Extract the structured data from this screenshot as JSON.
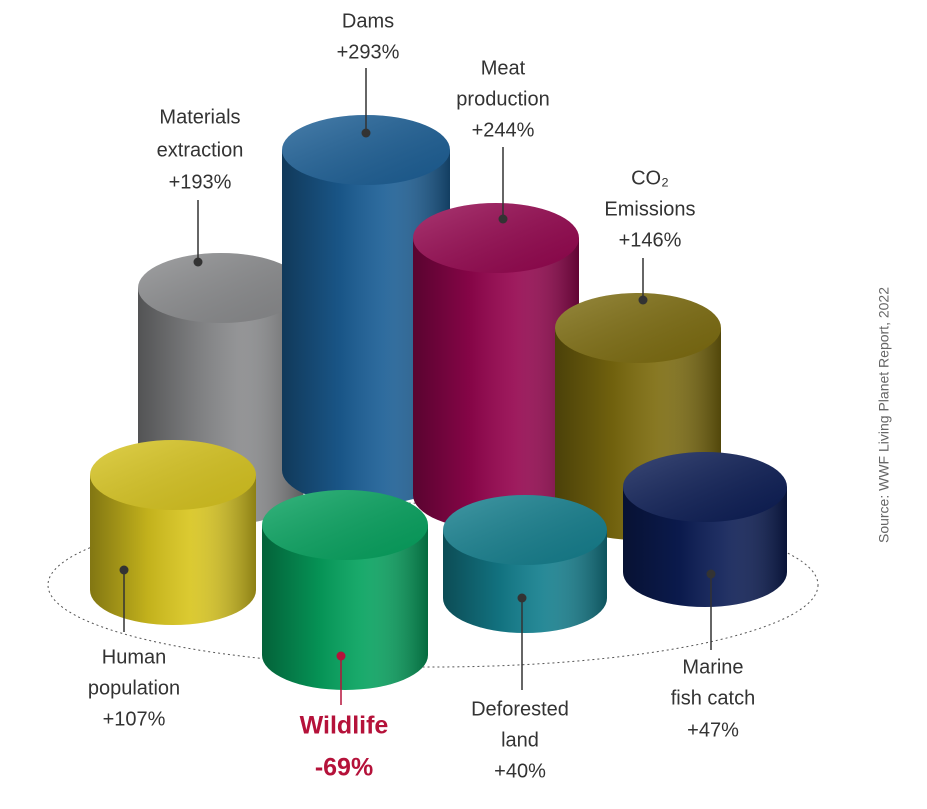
{
  "items": [
    {
      "label": [
        "Materials",
        "extraction"
      ],
      "value": "+193%",
      "color": "#8a8b8d"
    },
    {
      "label": [
        "Dams"
      ],
      "value": "+293%",
      "color": "#1c5f96"
    },
    {
      "label": [
        "Meat",
        "production"
      ],
      "value": "+244%",
      "color": "#95064f"
    },
    {
      "label": [
        "CO₂",
        "Emissions"
      ],
      "value": "+146%",
      "color": "#7d6c0f"
    },
    {
      "label": [
        "Human",
        "population"
      ],
      "value": "+107%",
      "color": "#d8c51f"
    },
    {
      "label": [
        "Wildlife"
      ],
      "value": "-69%",
      "color": "#06a35f",
      "label_color": "#b5123a"
    },
    {
      "label": [
        "Deforested",
        "land"
      ],
      "value": "+40%",
      "color": "#147f8e"
    },
    {
      "label": [
        "Marine",
        "fish catch"
      ],
      "value": "+47%",
      "color": "#0c1d55"
    }
  ],
  "source": "Source: WWF Living Planet Report, 2022"
}
